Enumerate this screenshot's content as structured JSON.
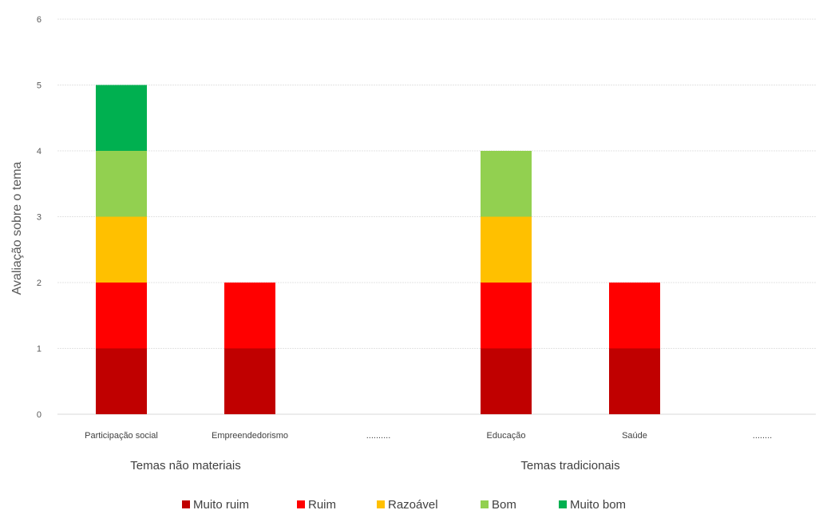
{
  "chart_data": {
    "type": "bar",
    "stacked": true,
    "title": "",
    "xlabel": "",
    "ylabel": "Avaliação sobre o tema",
    "ylim": [
      0,
      6
    ],
    "yticks": [
      0,
      1,
      2,
      3,
      4,
      5,
      6
    ],
    "grid": true,
    "legend_position": "bottom",
    "categories": [
      "Participação social",
      "Empreendedorismo",
      "..........",
      "Educação",
      "Saúde",
      "........"
    ],
    "groups": [
      {
        "label": "Temas não materiais",
        "categories": [
          0,
          1,
          2
        ]
      },
      {
        "label": "Temas tradicionais",
        "categories": [
          3,
          4,
          5
        ]
      }
    ],
    "series": [
      {
        "name": "Muito ruim",
        "color": "#c00000",
        "values": [
          1,
          1,
          0,
          1,
          1,
          0
        ]
      },
      {
        "name": "Ruim",
        "color": "#ff0000",
        "values": [
          1,
          1,
          0,
          1,
          1,
          0
        ]
      },
      {
        "name": "Razoável",
        "color": "#ffc000",
        "values": [
          1,
          0,
          0,
          1,
          0,
          0
        ]
      },
      {
        "name": "Bom",
        "color": "#92d050",
        "values": [
          1,
          0,
          0,
          1,
          0,
          0
        ]
      },
      {
        "name": "Muito bom",
        "color": "#00b050",
        "values": [
          1,
          0,
          0,
          0,
          0,
          0
        ]
      }
    ]
  }
}
